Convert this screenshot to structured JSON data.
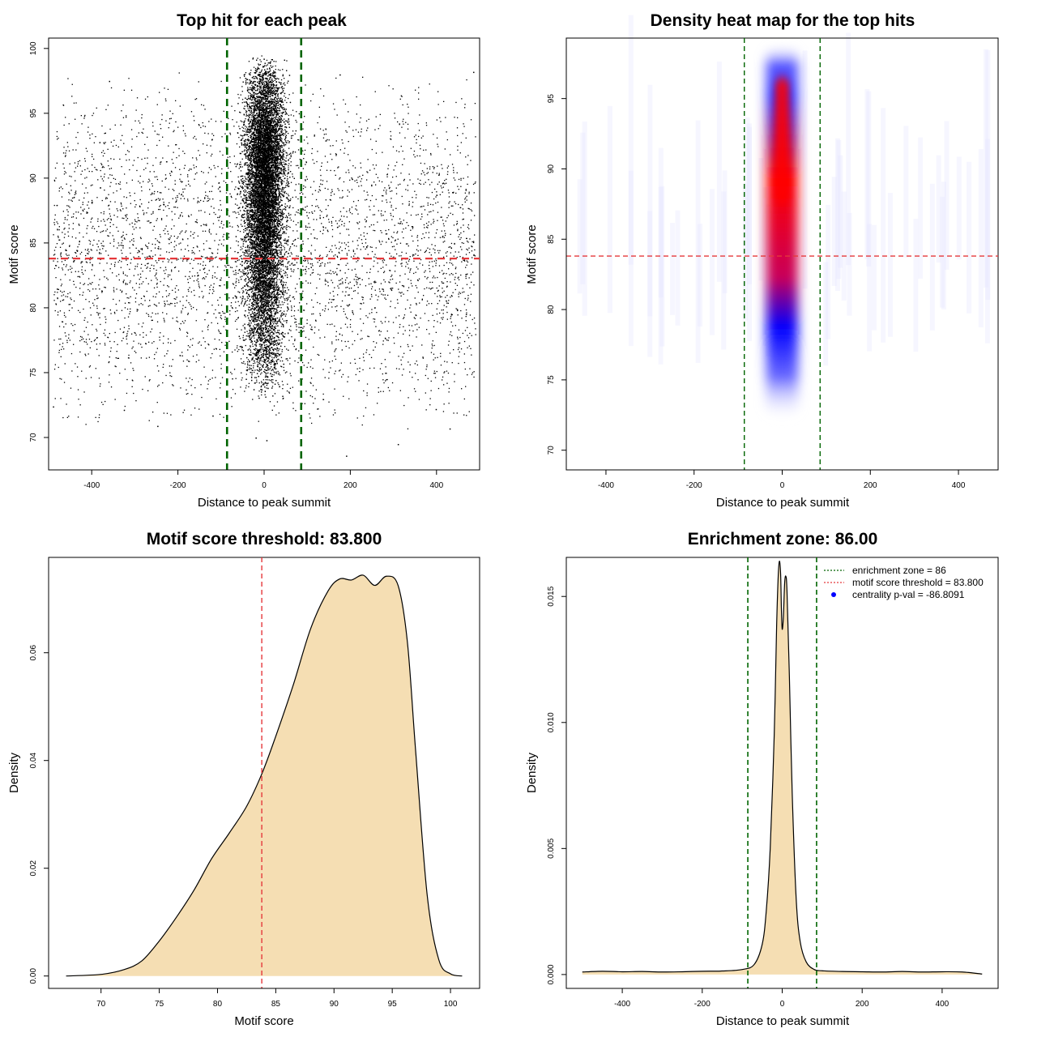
{
  "colors": {
    "enrichment_line": "#006400",
    "threshold_line": "#e5383b",
    "density_fill": "#f5deb3",
    "heat_low": "#ffffff",
    "heat_mid": "#0000ff",
    "heat_high": "#ff0000",
    "points": "#000000"
  },
  "chart_data": [
    {
      "id": "scatter",
      "type": "scatter",
      "title": "Top hit for each peak",
      "xlabel": "Distance to peak summit",
      "ylabel": "Motif score",
      "xlim": [
        -500,
        500
      ],
      "ylim": [
        67.5,
        100.8
      ],
      "xticks": [
        -400,
        -200,
        0,
        200,
        400
      ],
      "yticks": [
        70,
        75,
        80,
        85,
        90,
        95,
        100
      ],
      "vlines": [
        -86,
        86
      ],
      "hline": 83.8,
      "background": {
        "x_range": [
          -490,
          490
        ],
        "y_range": [
          70.5,
          98.2
        ],
        "y_mode": 84,
        "approx_points": 4200
      },
      "central": {
        "x_center": 0,
        "x_sd": 22,
        "y_range": [
          73,
          99.5
        ],
        "y_mode": 92,
        "approx_points": 14000
      },
      "sample_points": [
        {
          "x": -490,
          "y": 72.4
        },
        {
          "x": -248,
          "y": 70.9
        },
        {
          "x": -120,
          "y": 71.7
        },
        {
          "x": 190,
          "y": 68.6
        },
        {
          "x": 310,
          "y": 69.5
        },
        {
          "x": 398,
          "y": 72.2
        },
        {
          "x": 430,
          "y": 70.7
        },
        {
          "x": 485,
          "y": 98.2
        },
        {
          "x": 175,
          "y": 98.0
        },
        {
          "x": -360,
          "y": 97.5
        },
        {
          "x": 5,
          "y": 69.8
        },
        {
          "x": -20,
          "y": 70.0
        }
      ]
    },
    {
      "id": "heatmap",
      "type": "heatmap",
      "title": "Density heat map for the top hits",
      "xlabel": "Distance to peak summit",
      "ylabel": "Motif score",
      "xlim": [
        -490,
        490
      ],
      "ylim": [
        68.6,
        99.3
      ],
      "xticks": [
        -400,
        -200,
        0,
        200,
        400
      ],
      "yticks": [
        70,
        75,
        80,
        85,
        90,
        95
      ],
      "vlines": [
        -86,
        86
      ],
      "hline": 83.8,
      "hotspot": {
        "x_center": 0,
        "x_sd": 12,
        "y_top": 96.5,
        "y_core_bottom": 85,
        "y_fade_bottom": 72
      }
    },
    {
      "id": "score-density",
      "type": "area",
      "title": "Motif score threshold: 83.800",
      "xlabel": "Motif score",
      "ylabel": "Density",
      "xlim": [
        65.5,
        102.5
      ],
      "ylim": [
        -0.0023,
        0.0777
      ],
      "xticks": [
        70,
        75,
        80,
        85,
        90,
        95,
        100
      ],
      "yticks": [
        0.0,
        0.02,
        0.04,
        0.06
      ],
      "ytick_labels": [
        "0.00",
        "0.02",
        "0.04",
        "0.06"
      ],
      "vline": 83.8,
      "x": [
        67,
        70,
        72,
        73.5,
        75,
        76.5,
        78,
        79.5,
        81,
        82.5,
        83.8,
        85,
        86.5,
        88,
        89.5,
        90.5,
        91.5,
        92.5,
        93.5,
        94.5,
        95.5,
        96.3,
        97,
        98,
        99,
        100,
        101
      ],
      "y": [
        0.0,
        0.0003,
        0.0012,
        0.0028,
        0.0065,
        0.011,
        0.016,
        0.0218,
        0.0265,
        0.0315,
        0.0375,
        0.0445,
        0.054,
        0.0645,
        0.0715,
        0.0737,
        0.0735,
        0.0744,
        0.0725,
        0.0742,
        0.0725,
        0.062,
        0.042,
        0.015,
        0.003,
        0.0004,
        0.0
      ]
    },
    {
      "id": "distance-density",
      "type": "area",
      "title": "Enrichment zone: 86.00",
      "xlabel": "Distance to peak summit",
      "ylabel": "Density",
      "xlim": [
        -540,
        540
      ],
      "ylim": [
        -0.00055,
        0.01655
      ],
      "xticks": [
        -400,
        -200,
        0,
        200,
        400
      ],
      "yticks": [
        0.0,
        0.005,
        0.01,
        0.015
      ],
      "ytick_labels": [
        "0.000",
        "0.005",
        "0.010",
        "0.015"
      ],
      "vlines": [
        -86,
        86
      ],
      "x": [
        -500,
        -450,
        -400,
        -350,
        -300,
        -250,
        -200,
        -150,
        -100,
        -70,
        -50,
        -40,
        -30,
        -20,
        -14,
        -10,
        -7,
        -4,
        -2,
        0,
        3,
        6,
        9,
        12,
        18,
        25,
        35,
        45,
        60,
        80,
        100,
        150,
        200,
        250,
        300,
        350,
        400,
        450,
        500
      ],
      "y": [
        0.0001,
        0.00013,
        0.00011,
        0.00012,
        0.0001,
        0.00011,
        0.00013,
        0.00014,
        0.0002,
        0.0004,
        0.0012,
        0.0025,
        0.005,
        0.0095,
        0.0138,
        0.0158,
        0.0164,
        0.0159,
        0.0145,
        0.0137,
        0.0142,
        0.0155,
        0.0158,
        0.0152,
        0.0118,
        0.0072,
        0.003,
        0.0013,
        0.0005,
        0.0002,
        0.00015,
        0.00012,
        0.00011,
        0.0001,
        0.00012,
        0.0001,
        0.00011,
        0.0001,
        2e-05
      ],
      "legend": {
        "position": "top-right",
        "entries": [
          "enrichment zone = 86",
          "motif score threshold = 83.800",
          "centrality p-val = -86.8091"
        ]
      }
    }
  ]
}
